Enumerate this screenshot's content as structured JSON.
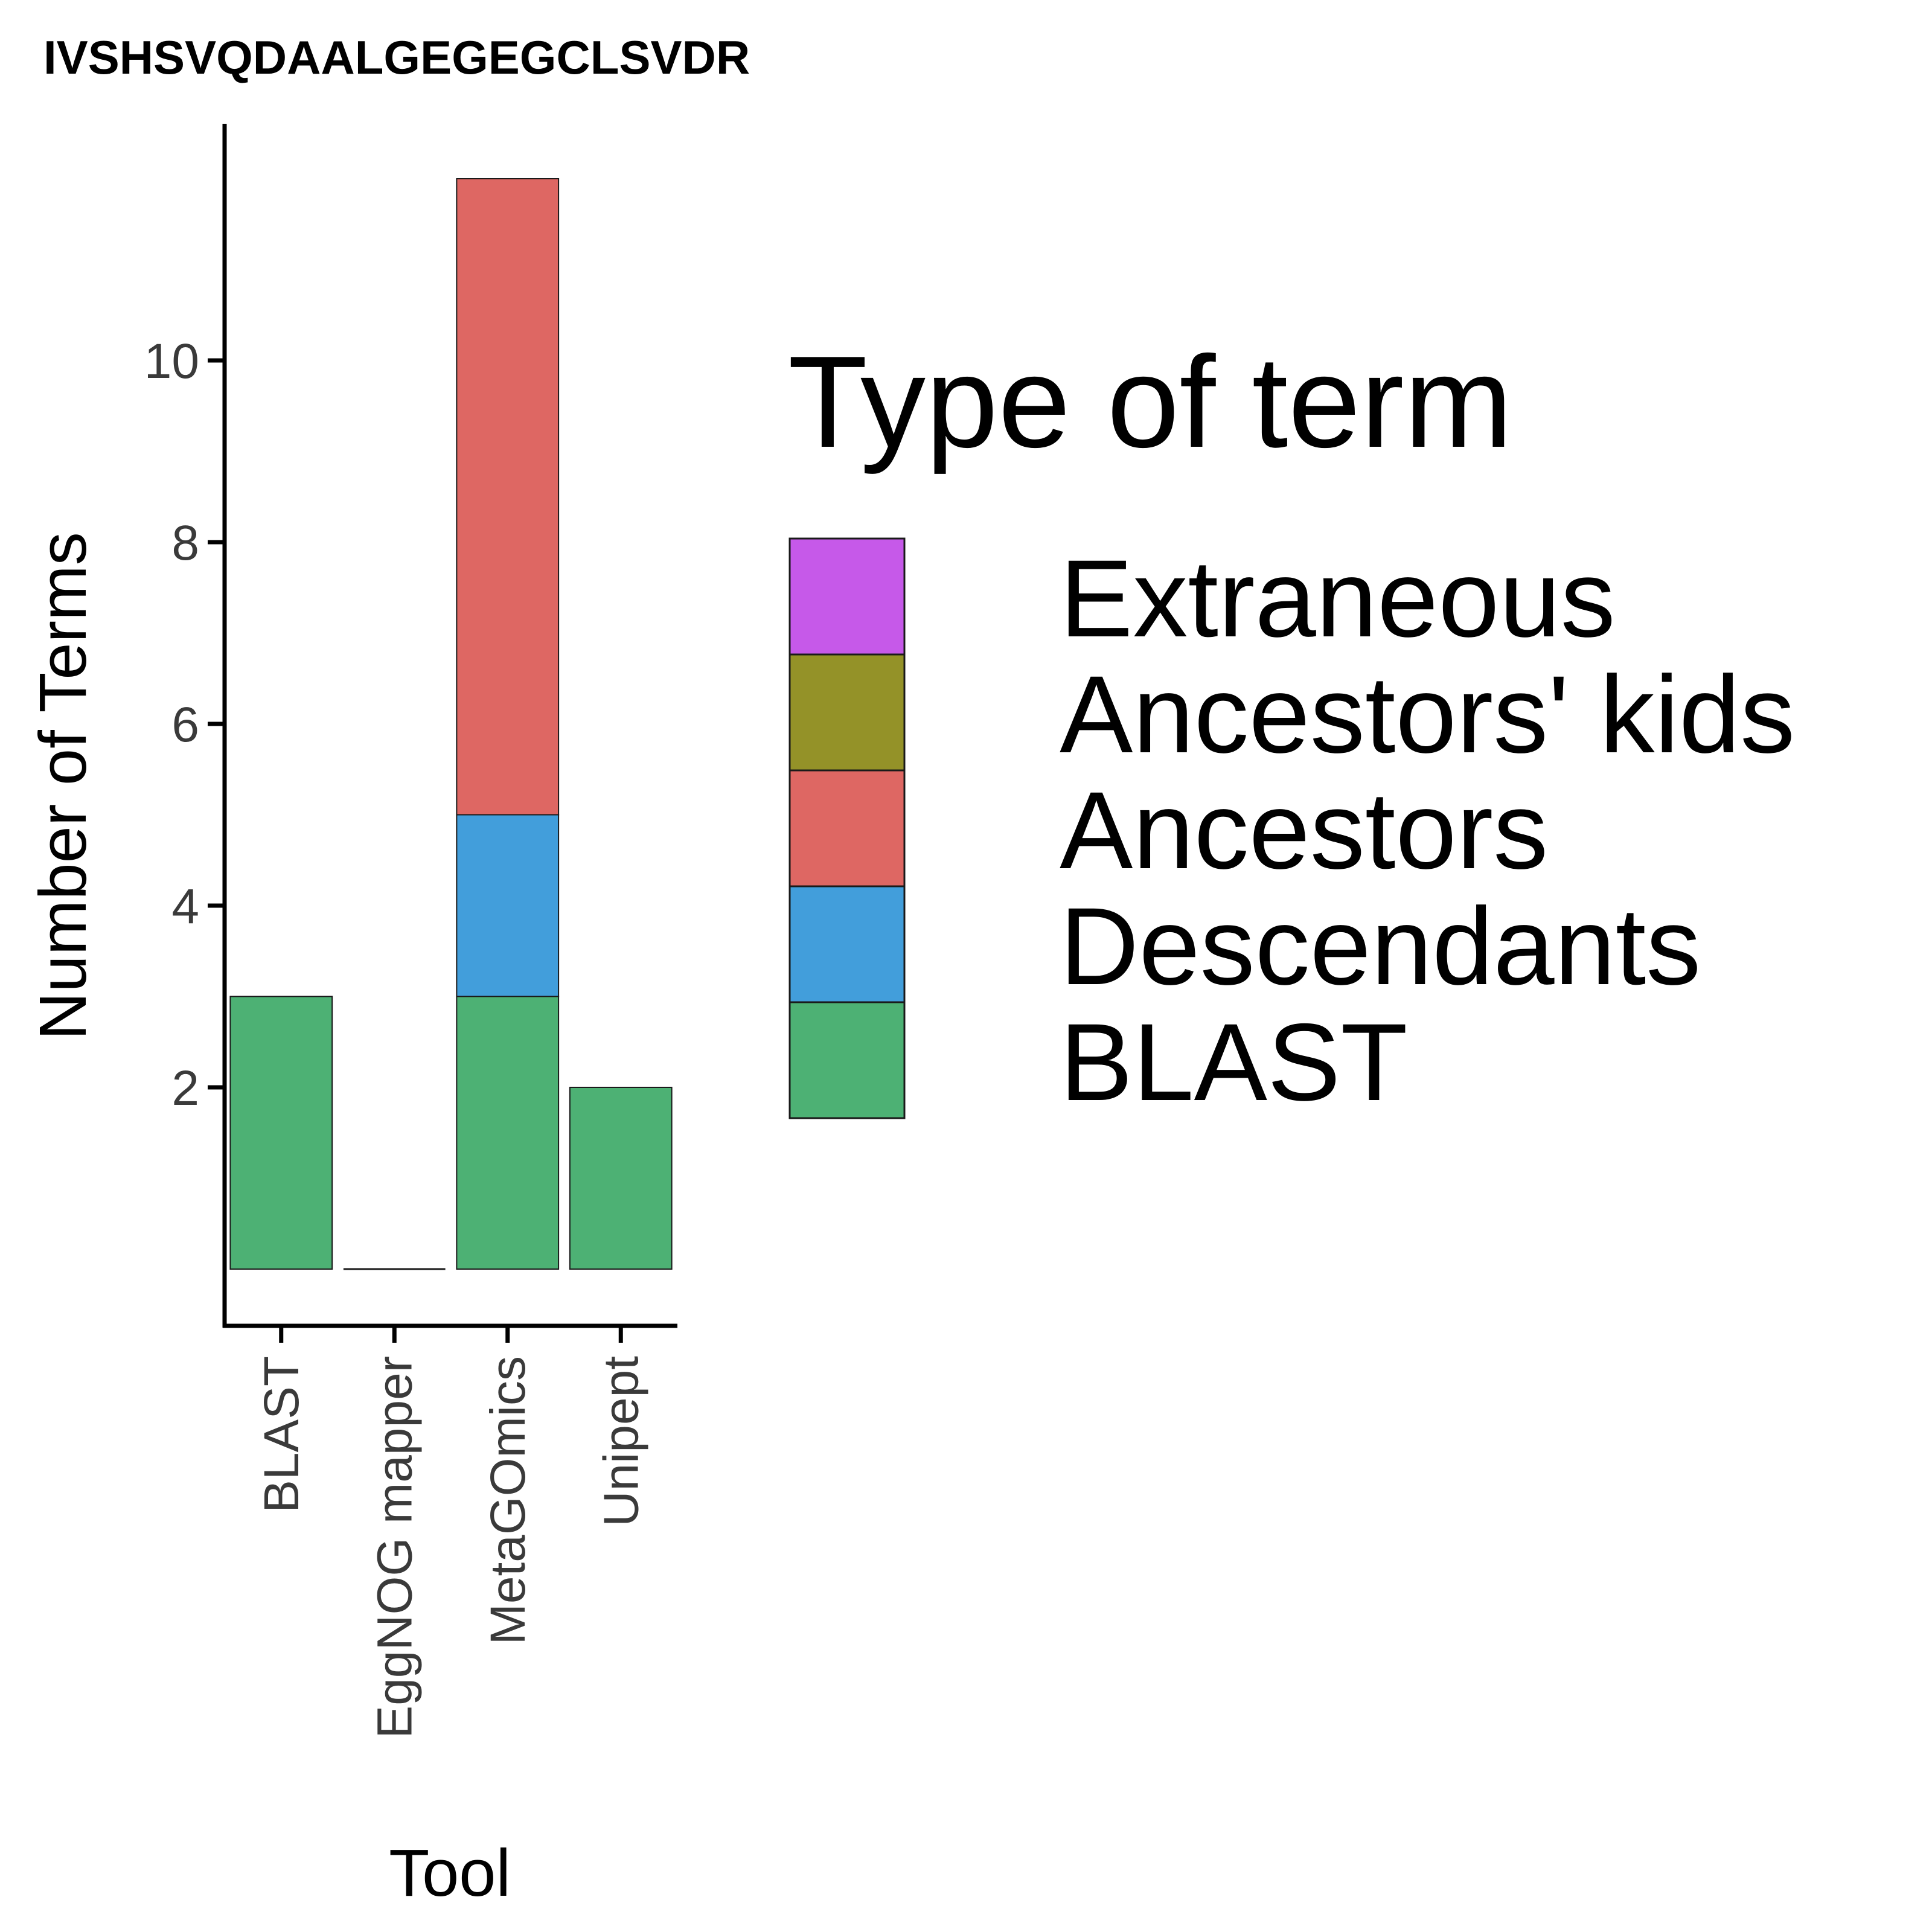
{
  "chart_data": {
    "type": "bar",
    "stacked": true,
    "title": "IVSHSVQDAALGEGEGCLSVDR",
    "xlabel": "Tool",
    "ylabel": "Number of Terms",
    "categories": [
      "BLAST",
      "EggNOG mapper",
      "MetaGOmics",
      "Unipept"
    ],
    "yticks": [
      2,
      4,
      6,
      8,
      10
    ],
    "ylim": [
      -0.6,
      12.6
    ],
    "series": [
      {
        "name": "BLAST",
        "color": "#4db174",
        "values": [
          3,
          0,
          3,
          2
        ]
      },
      {
        "name": "Descendants",
        "color": "#429edb",
        "values": [
          0,
          0,
          2,
          0
        ]
      },
      {
        "name": "Ancestors",
        "color": "#de6763",
        "values": [
          0,
          0,
          7,
          0
        ]
      },
      {
        "name": "Ancestors' kids",
        "color": "#949228",
        "values": [
          0,
          0,
          0,
          0
        ]
      },
      {
        "name": "Extraneous",
        "color": "#c659e9",
        "values": [
          0,
          0,
          0,
          0
        ]
      }
    ],
    "legend": {
      "title": "Type of term",
      "position": "right",
      "order": [
        "Extraneous",
        "Ancestors' kids",
        "Ancestors",
        "Descendants",
        "BLAST"
      ]
    },
    "grid": false
  }
}
